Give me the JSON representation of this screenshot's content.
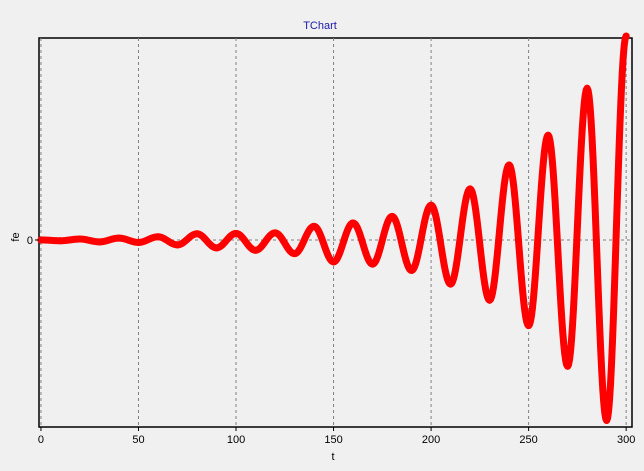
{
  "chart_data": {
    "type": "line",
    "title": "TChart",
    "xlabel": "t",
    "ylabel": "fe",
    "xlim": [
      -1,
      303
    ],
    "ylim": [
      -1.0,
      1.08
    ],
    "x_ticks": [
      0,
      50,
      100,
      150,
      200,
      250,
      300
    ],
    "x_tick_labels": [
      "0",
      "50",
      "100",
      "150",
      "200",
      "250",
      "300"
    ],
    "y_ticks": [
      0
    ],
    "y_tick_labels": [
      "0"
    ],
    "grid": true,
    "legend": "none",
    "line_color": "#ff0000",
    "series": [
      {
        "x": [
          0,
          10,
          20,
          30,
          40,
          50,
          60,
          70,
          80,
          90,
          100,
          110,
          120,
          130,
          140,
          150,
          160,
          170,
          180,
          190,
          200,
          210,
          220,
          230,
          240,
          250,
          260,
          270,
          280,
          290,
          300
        ],
        "values": [
          0,
          -0.004,
          0.005,
          -0.01,
          0.01,
          -0.013,
          0.017,
          -0.026,
          0.033,
          -0.042,
          0.035,
          -0.055,
          0.038,
          -0.073,
          0.073,
          -0.117,
          0.091,
          -0.129,
          0.126,
          -0.163,
          0.186,
          -0.236,
          0.273,
          -0.322,
          0.401,
          -0.458,
          0.56,
          -0.675,
          0.811,
          -0.965,
          1.09
        ]
      }
    ]
  }
}
